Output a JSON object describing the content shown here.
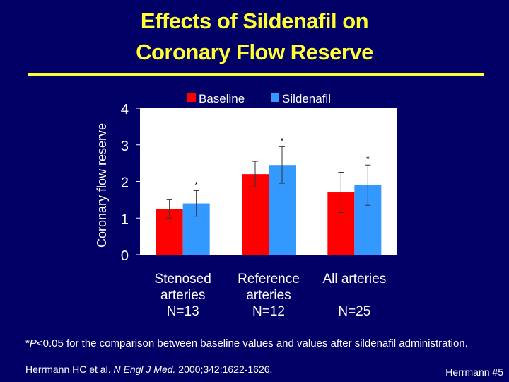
{
  "slide": {
    "title_line1": "Effects of Sildenafil on",
    "title_line2": "Coronary Flow Reserve",
    "footnote_star": "*",
    "footnote_p": "P",
    "footnote_rest": "<0.05 for the comparison between baseline values and values after sildenafil administration.",
    "citation_pre": "Herrmann HC et al. ",
    "citation_journal": "N Engl J Med.",
    "citation_post": " 2000;342:1622-1626.",
    "slide_number": "Herrmann #5"
  },
  "colors": {
    "background": "#000066",
    "title": "#FFFF33",
    "text": "#FFFFFF",
    "baseline": "#FF0000",
    "sildenafil": "#3399FF",
    "plot_area": "#FFFFFF"
  },
  "chart_data": {
    "type": "bar",
    "title": "",
    "ylabel": "Coronary flow reserve",
    "xlabel": "",
    "ylim": [
      0,
      4
    ],
    "yticks": [
      0,
      1,
      2,
      3,
      4
    ],
    "grid": false,
    "legend_position": "top",
    "categories": [
      {
        "lines": [
          "Stenosed",
          "arteries",
          "N=13"
        ]
      },
      {
        "lines": [
          "Reference",
          "arteries",
          "N=12"
        ]
      },
      {
        "lines": [
          "All arteries",
          "",
          "N=25"
        ]
      }
    ],
    "series": [
      {
        "name": "Baseline",
        "color": "#FF0000",
        "values": [
          1.25,
          2.2,
          1.7
        ],
        "errors": [
          0.25,
          0.35,
          0.55
        ]
      },
      {
        "name": "Sildenafil",
        "color": "#3399FF",
        "values": [
          1.4,
          2.45,
          1.9
        ],
        "errors": [
          0.35,
          0.5,
          0.55
        ]
      }
    ],
    "annotations": [
      {
        "category": 0,
        "series": 1,
        "text": "*"
      },
      {
        "category": 1,
        "series": 1,
        "text": "*"
      },
      {
        "category": 2,
        "series": 1,
        "text": "*"
      }
    ]
  }
}
